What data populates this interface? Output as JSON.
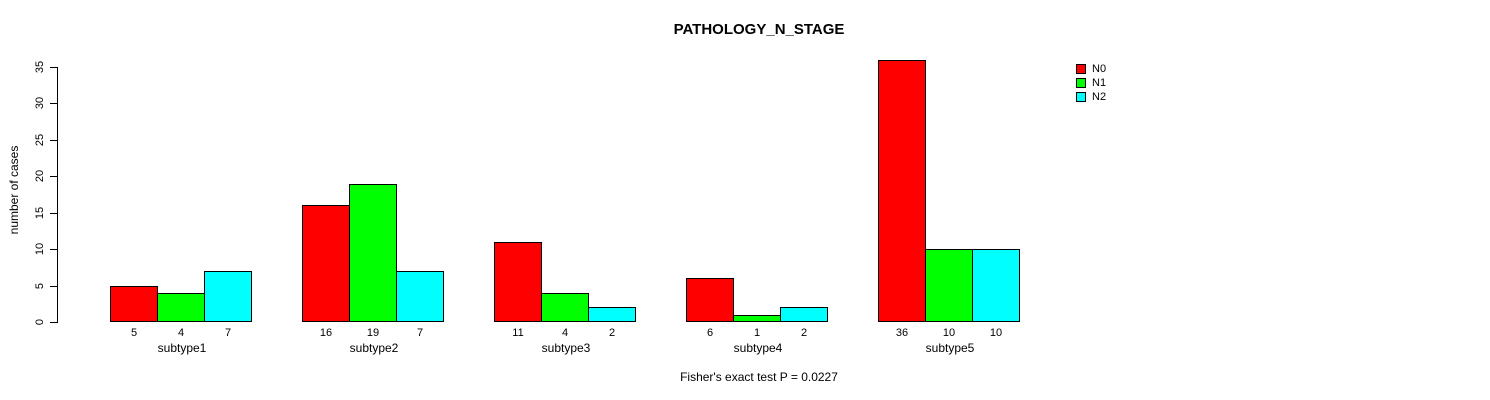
{
  "chart_data": {
    "type": "bar",
    "title": "PATHOLOGY_N_STAGE",
    "ylabel": "number of cases",
    "xlabel": "",
    "categories": [
      "subtype1",
      "subtype2",
      "subtype3",
      "subtype4",
      "subtype5"
    ],
    "series": [
      {
        "name": "N0",
        "color": "#FF0000",
        "values": [
          5,
          16,
          11,
          6,
          36
        ]
      },
      {
        "name": "N1",
        "color": "#00FF00",
        "values": [
          4,
          19,
          4,
          1,
          10
        ]
      },
      {
        "name": "N2",
        "color": "#00FFFF",
        "values": [
          7,
          7,
          2,
          2,
          10
        ]
      }
    ],
    "ylim": [
      0,
      35
    ],
    "yticks": [
      0,
      5,
      10,
      15,
      20,
      25,
      30,
      35
    ],
    "grid": false,
    "bar_value_labels_shown": true,
    "legend_position": "top-right",
    "annotation": "Fisher's exact test P = 0.0227"
  },
  "colors": {
    "background": "#FFFFFF",
    "axis": "#000000",
    "text": "#000000"
  }
}
